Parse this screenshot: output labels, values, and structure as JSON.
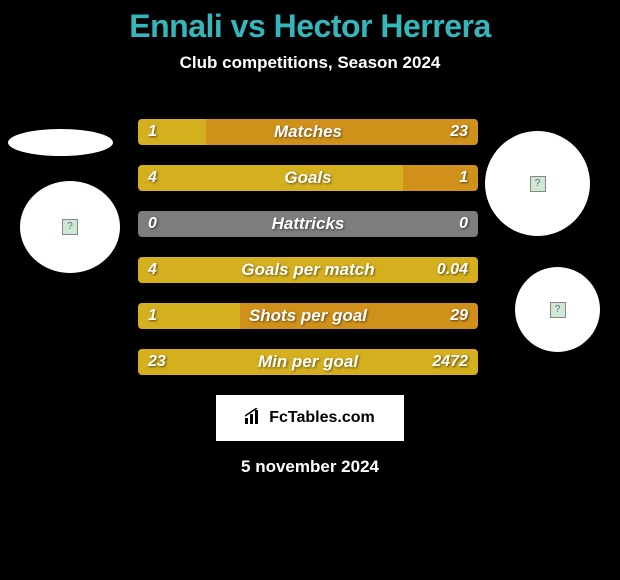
{
  "title": "Ennali vs Hector Herrera",
  "subtitle": "Club competitions, Season 2024",
  "footer_date": "5 november 2024",
  "logo_text": "FcTables.com",
  "colors": {
    "title": "#35b6bb",
    "bg": "#000000",
    "left_bar_default": "#d4af1e",
    "right_bar_default": "#d0911a",
    "neutral_bar": "#7d7d7d",
    "text": "#ffffff"
  },
  "stats": [
    {
      "label": "Matches",
      "left_val": "1",
      "right_val": "23",
      "left_pct": 20,
      "right_pct": 80,
      "left_color": "#d4af1e",
      "right_color": "#d0911a"
    },
    {
      "label": "Goals",
      "left_val": "4",
      "right_val": "1",
      "left_pct": 78,
      "right_pct": 22,
      "left_color": "#d4af1e",
      "right_color": "#d0911a"
    },
    {
      "label": "Hattricks",
      "left_val": "0",
      "right_val": "0",
      "left_pct": 50,
      "right_pct": 50,
      "left_color": "#7d7d7d",
      "right_color": "#7d7d7d"
    },
    {
      "label": "Goals per match",
      "left_val": "4",
      "right_val": "0.04",
      "left_pct": 100,
      "right_pct": 0,
      "left_color": "#d4af1e",
      "right_color": "#d0911a"
    },
    {
      "label": "Shots per goal",
      "left_val": "1",
      "right_val": "29",
      "left_pct": 30,
      "right_pct": 70,
      "left_color": "#d4af1e",
      "right_color": "#d0911a"
    },
    {
      "label": "Min per goal",
      "left_val": "23",
      "right_val": "2472",
      "left_pct": 100,
      "right_pct": 0,
      "left_color": "#d4af1e",
      "right_color": "#d0911a"
    }
  ]
}
